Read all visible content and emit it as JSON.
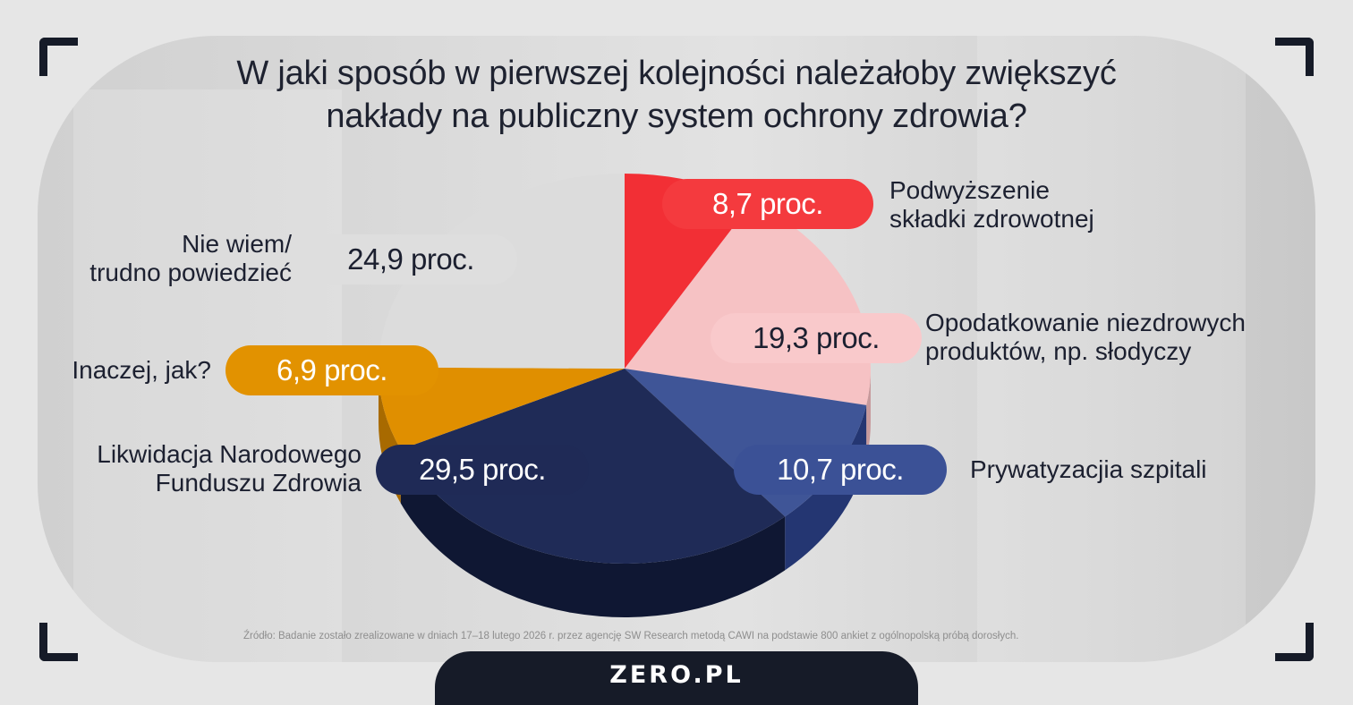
{
  "title_line1": "W jaki sposób w pierwszej kolejności należałoby zwiększyć",
  "title_line2": "nakłady na publiczny system ochrony zdrowia?",
  "source": "Źródło: Badanie zostało zrealizowane w dniach 17–18 lutego 2026 r. przez agencję SW Research metodą CAWI na podstawie 800 ankiet z ogólnopolską próbą dorosłych.",
  "logo": "ZERO.PL",
  "chart_data": {
    "type": "pie",
    "unit": "proc.",
    "slices": [
      {
        "label_lines": [
          "Podwyższenie",
          "składki zdrowotnej"
        ],
        "value": 8.7,
        "value_label": "8,7 proc.",
        "color": "#f22f35",
        "side": "#b01f24",
        "pill_color": "#f43a3e",
        "pill_text": "#ffffff"
      },
      {
        "label_lines": [
          "Opodatkowanie niezdrowych",
          "produktów, np. słodyczy"
        ],
        "value": 19.3,
        "value_label": "19,3 proc.",
        "color": "#f6c2c4",
        "side": "#c79a9c",
        "pill_color": "#f9c9cb",
        "pill_text": "#1c2030"
      },
      {
        "label_lines": [
          "Prywatyzacjia szpitali"
        ],
        "value": 10.7,
        "value_label": "10,7 proc.",
        "color": "#3f5597",
        "side": "#243672",
        "pill_color": "#3b5196",
        "pill_text": "#ffffff"
      },
      {
        "label_lines": [
          "Likwidacja Narodowego",
          "Funduszu Zdrowia"
        ],
        "value": 29.5,
        "value_label": "29,5 proc.",
        "color": "#1f2b57",
        "side": "#0f1733",
        "pill_color": "#1f2a56",
        "pill_text": "#ffffff"
      },
      {
        "label_lines": [
          "Inaczej, jak?"
        ],
        "value": 6.9,
        "value_label": "6,9 proc.",
        "color": "#e08f00",
        "side": "#a86a00",
        "pill_color": "#e29200",
        "pill_text": "#ffffff"
      },
      {
        "label_lines": [
          "Nie wiem/",
          "trudno powiedzieć"
        ],
        "value": 24.9,
        "value_label": "24,9 proc.",
        "color": "#dcdcdc",
        "side": "#b8b8b8",
        "pill_color": "#dedede",
        "pill_text": "#1c2030"
      }
    ]
  }
}
